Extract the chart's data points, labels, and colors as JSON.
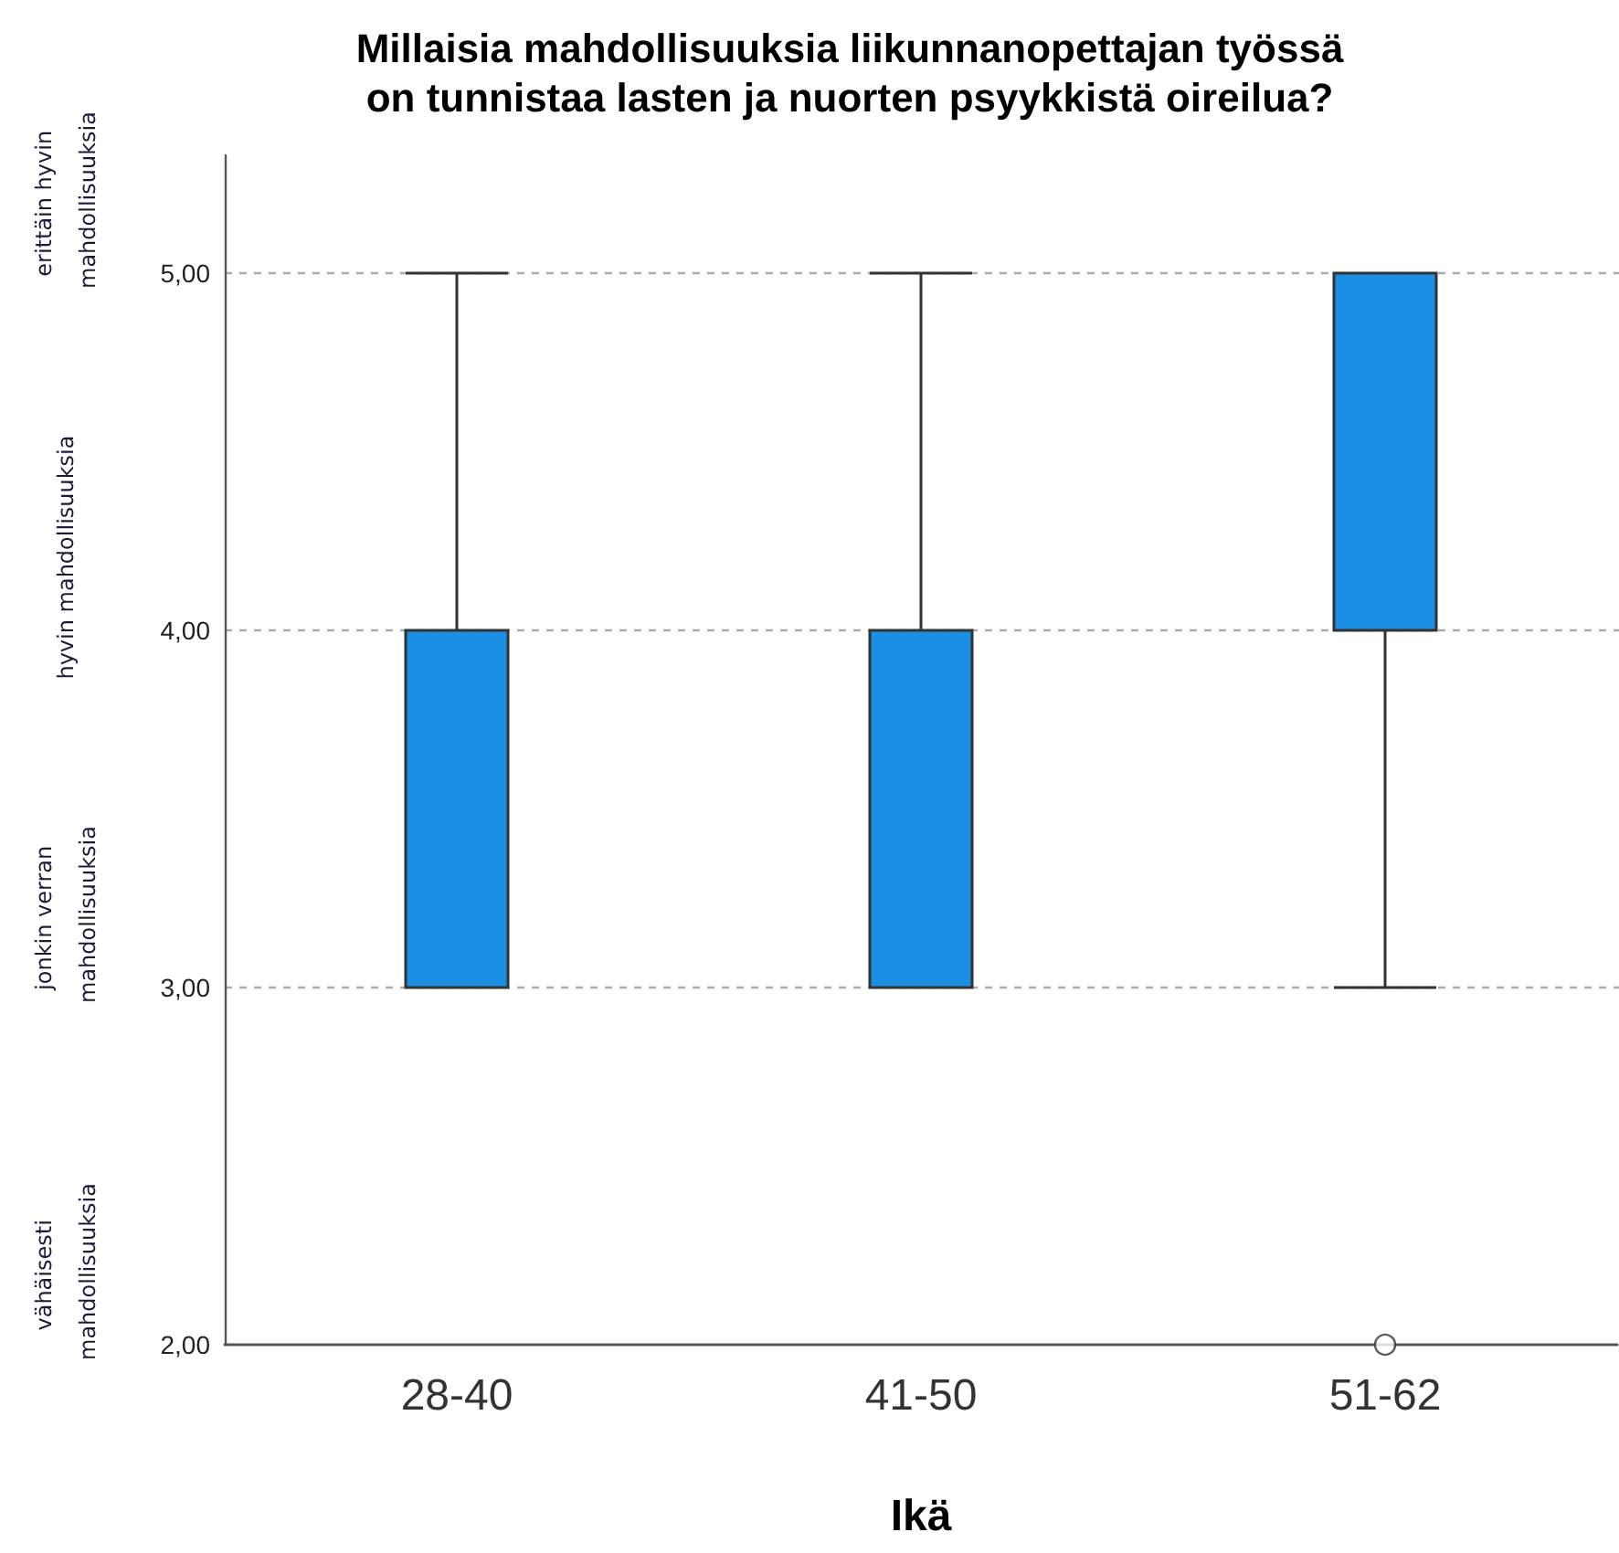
{
  "chart_data": {
    "type": "box",
    "title": "Millaisia mahdollisuuksia liikunnanopettajan työssä\non tunnistaa lasten ja nuorten psyykkistä oireilua?",
    "xlabel": "Ikä",
    "annotations": [
      "vähäisesti mahdollisuuksia",
      "jonkin verran mahdollisuuksia",
      "hyvin mahdollisuuksia",
      "erittäin hyvin mahdollisuuksia"
    ],
    "categories": [
      "28-40",
      "41-50",
      "51-62"
    ],
    "series": [
      {
        "color": "#1a8fe3",
        "boxes": [
          {
            "low": 3,
            "q1": 3,
            "median": 4,
            "q3": 4,
            "high": 5
          },
          {
            "low": 3,
            "q1": 3,
            "median": 4,
            "q3": 4,
            "high": 5
          },
          {
            "low": 3,
            "q1": 4,
            "median": 4,
            "q3": 5,
            "high": 5,
            "outliers": [
              2
            ]
          }
        ]
      }
    ],
    "ylim": [
      2,
      5.33
    ],
    "yticks": [
      {
        "value": 2,
        "label": "2,00"
      },
      {
        "value": 3,
        "label": "3,00"
      },
      {
        "value": 4,
        "label": "4,00"
      },
      {
        "value": 5,
        "label": "5,00"
      }
    ],
    "grid": "y"
  }
}
